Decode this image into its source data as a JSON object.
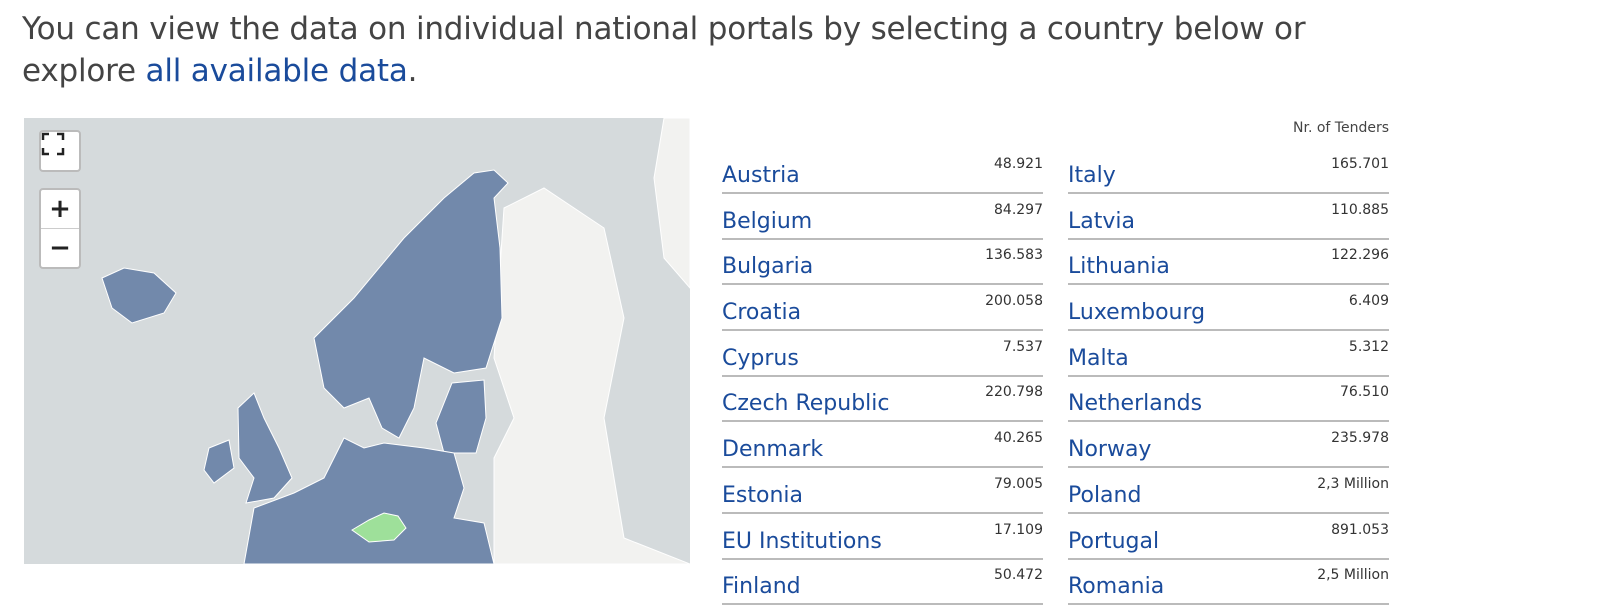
{
  "intro": {
    "text": "You can view the data on individual national portals by selecting a country below or explore",
    "link": "all available data",
    "end": "."
  },
  "map": {
    "zoom_in": "+",
    "zoom_out": "−"
  },
  "table": {
    "header": "Nr. of Tenders",
    "columns": [
      [
        {
          "name": "Austria",
          "value": "48.921"
        },
        {
          "name": "Belgium",
          "value": "84.297"
        },
        {
          "name": "Bulgaria",
          "value": "136.583"
        },
        {
          "name": "Croatia",
          "value": "200.058"
        },
        {
          "name": "Cyprus",
          "value": "7.537"
        },
        {
          "name": "Czech Republic",
          "value": "220.798"
        },
        {
          "name": "Denmark",
          "value": "40.265"
        },
        {
          "name": "Estonia",
          "value": "79.005"
        },
        {
          "name": "EU Institutions",
          "value": "17.109"
        },
        {
          "name": "Finland",
          "value": "50.472"
        }
      ],
      [
        {
          "name": "Italy",
          "value": "165.701"
        },
        {
          "name": "Latvia",
          "value": "110.885"
        },
        {
          "name": "Lithuania",
          "value": "122.296"
        },
        {
          "name": "Luxembourg",
          "value": "6.409"
        },
        {
          "name": "Malta",
          "value": "5.312"
        },
        {
          "name": "Netherlands",
          "value": "76.510"
        },
        {
          "name": "Norway",
          "value": "235.978"
        },
        {
          "name": "Poland",
          "value": "2,3 Million"
        },
        {
          "name": "Portugal",
          "value": "891.053"
        },
        {
          "name": "Romania",
          "value": "2,5 Million"
        }
      ]
    ]
  }
}
